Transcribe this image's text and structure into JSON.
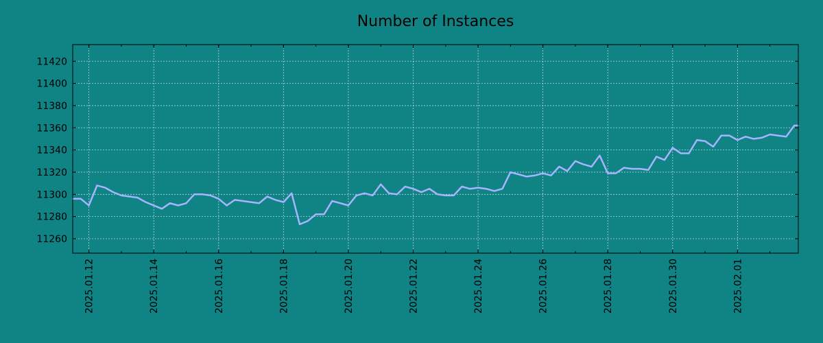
{
  "colors": {
    "background": "#108385",
    "line": "#a7b4ff"
  },
  "chart_data": {
    "type": "line",
    "title": "Number of Instances",
    "xlabel": "",
    "ylabel": "",
    "grid": true,
    "ylim": [
      11247,
      11435
    ],
    "xlim": [
      "2025-01-11 12:00",
      "2025-02-02 21:00"
    ],
    "y_ticks": [
      11260,
      11280,
      11300,
      11320,
      11340,
      11360,
      11380,
      11400,
      11420
    ],
    "x_ticks": [
      {
        "date": "2025-01-12",
        "label": "2025.01.12"
      },
      {
        "date": "2025-01-14",
        "label": "2025.01.14"
      },
      {
        "date": "2025-01-16",
        "label": "2025.01.16"
      },
      {
        "date": "2025-01-18",
        "label": "2025.01.18"
      },
      {
        "date": "2025-01-20",
        "label": "2025.01.20"
      },
      {
        "date": "2025-01-22",
        "label": "2025.01.22"
      },
      {
        "date": "2025-01-24",
        "label": "2025.01.24"
      },
      {
        "date": "2025-01-26",
        "label": "2025.01.26"
      },
      {
        "date": "2025-01-28",
        "label": "2025.01.28"
      },
      {
        "date": "2025-01-30",
        "label": "2025.01.30"
      },
      {
        "date": "2025-02-01",
        "label": "2025.02.01"
      }
    ],
    "x": [
      "2025-01-11 12:00",
      "2025-01-11 18:00",
      "2025-01-12 00:00",
      "2025-01-12 06:00",
      "2025-01-12 12:00",
      "2025-01-12 18:00",
      "2025-01-13 00:00",
      "2025-01-13 06:00",
      "2025-01-13 12:00",
      "2025-01-13 18:00",
      "2025-01-14 00:00",
      "2025-01-14 06:00",
      "2025-01-14 12:00",
      "2025-01-14 18:00",
      "2025-01-15 00:00",
      "2025-01-15 06:00",
      "2025-01-15 12:00",
      "2025-01-15 18:00",
      "2025-01-16 00:00",
      "2025-01-16 06:00",
      "2025-01-16 12:00",
      "2025-01-16 18:00",
      "2025-01-17 00:00",
      "2025-01-17 06:00",
      "2025-01-17 12:00",
      "2025-01-17 18:00",
      "2025-01-18 00:00",
      "2025-01-18 06:00",
      "2025-01-18 12:00",
      "2025-01-18 18:00",
      "2025-01-19 00:00",
      "2025-01-19 06:00",
      "2025-01-19 12:00",
      "2025-01-19 18:00",
      "2025-01-20 00:00",
      "2025-01-20 06:00",
      "2025-01-20 12:00",
      "2025-01-20 18:00",
      "2025-01-21 00:00",
      "2025-01-21 06:00",
      "2025-01-21 12:00",
      "2025-01-21 18:00",
      "2025-01-22 00:00",
      "2025-01-22 06:00",
      "2025-01-22 12:00",
      "2025-01-22 18:00",
      "2025-01-23 00:00",
      "2025-01-23 06:00",
      "2025-01-23 12:00",
      "2025-01-23 18:00",
      "2025-01-24 00:00",
      "2025-01-24 06:00",
      "2025-01-24 12:00",
      "2025-01-24 18:00",
      "2025-01-25 00:00",
      "2025-01-25 06:00",
      "2025-01-25 12:00",
      "2025-01-25 18:00",
      "2025-01-26 00:00",
      "2025-01-26 06:00",
      "2025-01-26 12:00",
      "2025-01-26 18:00",
      "2025-01-27 00:00",
      "2025-01-27 06:00",
      "2025-01-27 12:00",
      "2025-01-27 18:00",
      "2025-01-28 00:00",
      "2025-01-28 06:00",
      "2025-01-28 12:00",
      "2025-01-28 18:00",
      "2025-01-29 00:00",
      "2025-01-29 06:00",
      "2025-01-29 12:00",
      "2025-01-29 18:00",
      "2025-01-30 00:00",
      "2025-01-30 06:00",
      "2025-01-30 12:00",
      "2025-01-30 18:00",
      "2025-01-31 00:00",
      "2025-01-31 06:00",
      "2025-01-31 12:00",
      "2025-01-31 18:00",
      "2025-02-01 00:00",
      "2025-02-01 06:00",
      "2025-02-01 12:00",
      "2025-02-01 18:00",
      "2025-02-02 00:00",
      "2025-02-02 06:00",
      "2025-02-02 12:00",
      "2025-02-02 18:00",
      "2025-02-02 21:00"
    ],
    "series": [
      {
        "values": [
          11296,
          11296,
          11290,
          11308,
          11306,
          11302,
          11299,
          11298,
          11297,
          11293,
          11290,
          11287,
          11292,
          11290,
          11292,
          11300,
          11300,
          11299,
          11296,
          11290,
          11295,
          11294,
          11293,
          11292,
          11298,
          11295,
          11293,
          11301,
          11273,
          11276,
          11282,
          11282,
          11294,
          11292,
          11290,
          11299,
          11301,
          11299,
          11309,
          11301,
          11300,
          11307,
          11305,
          11302,
          11305,
          11300,
          11299,
          11299,
          11307,
          11305,
          11306,
          11305,
          11303,
          11305,
          11320,
          11318,
          11316,
          11317,
          11319,
          11317,
          11325,
          11321,
          11330,
          11327,
          11325,
          11335,
          11319,
          11319,
          11324,
          11323,
          11323,
          11322,
          11334,
          11331,
          11342,
          11337,
          11337,
          11349,
          11348,
          11343,
          11353,
          11353,
          11349,
          11352,
          11350,
          11351,
          11354,
          11353,
          11352,
          11362,
          11362
        ]
      }
    ]
  }
}
